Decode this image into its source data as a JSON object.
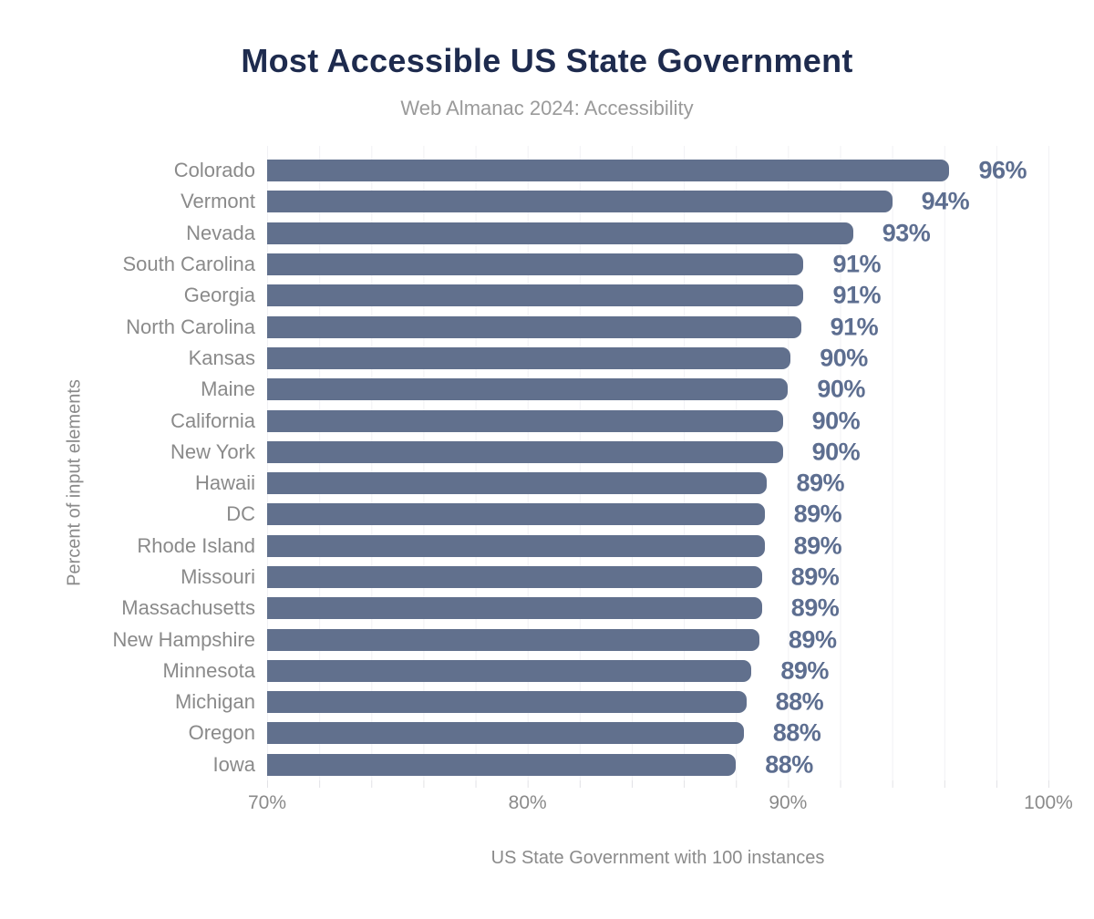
{
  "chart": {
    "title": "Most Accessible US State Government",
    "subtitle": "Web Almanac 2024: Accessibility",
    "xlabel": "US State Government with 100 instances",
    "ylabel": "Percent of input elements"
  },
  "chart_data": {
    "type": "bar",
    "orientation": "horizontal",
    "title": "Most Accessible US State Government",
    "subtitle": "Web Almanac 2024: Accessibility",
    "xlabel": "US State Government with 100 instances",
    "ylabel": "Percent of input elements",
    "xlim": [
      70,
      100
    ],
    "x_ticks": [
      {
        "value": 70,
        "label": "70%"
      },
      {
        "value": 80,
        "label": "80%"
      },
      {
        "value": 90,
        "label": "90%"
      },
      {
        "value": 100,
        "label": "100%"
      }
    ],
    "grid": "vertical gridlines every 2%, legend none",
    "bar_color": "#61708d",
    "value_label_color": "#5d6e90",
    "categories": [
      "Colorado",
      "Vermont",
      "Nevada",
      "South Carolina",
      "Georgia",
      "North Carolina",
      "Kansas",
      "Maine",
      "California",
      "New York",
      "Hawaii",
      "DC",
      "Rhode Island",
      "Missouri",
      "Massachusetts",
      "New Hampshire",
      "Minnesota",
      "Michigan",
      "Oregon",
      "Iowa"
    ],
    "values": [
      96.2,
      94.0,
      92.5,
      90.6,
      90.6,
      90.5,
      90.1,
      90.0,
      89.8,
      89.8,
      89.2,
      89.1,
      89.1,
      89.0,
      89.0,
      88.9,
      88.6,
      88.4,
      88.3,
      88.0
    ],
    "value_labels": [
      "96%",
      "94%",
      "93%",
      "91%",
      "91%",
      "91%",
      "90%",
      "90%",
      "90%",
      "90%",
      "89%",
      "89%",
      "89%",
      "89%",
      "89%",
      "89%",
      "89%",
      "88%",
      "88%",
      "88%"
    ]
  }
}
